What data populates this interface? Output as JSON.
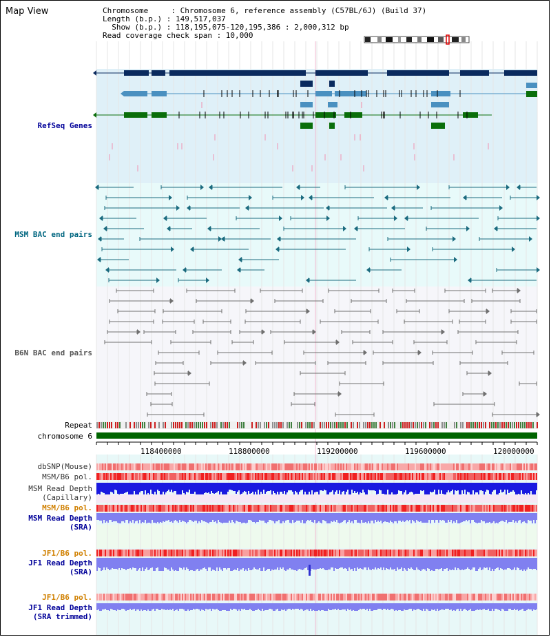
{
  "view": {
    "title": "Map View",
    "info_lines": [
      "Chromosome     : Chromosome 6, reference assembly (C57BL/6J) (Build 37)",
      "Length (b.p.) : 149,517,037",
      "  Show (b.p.) : 118,195,075-120,195,386 : 2,000,312 bp",
      "Read coverage check span : 10,000"
    ]
  },
  "tracks": {
    "refseq_label": "RefSeq Genes",
    "msm_bac_label": "MSM BAC end pairs",
    "b6n_bac_label": "B6N BAC end pairs",
    "repeat_label": "Repeat",
    "chromosome_label": "chromosome 6",
    "dbsnp_label": "dbSNP(Mouse)",
    "msm_b6_pol_label_1": "MSM/B6 pol.",
    "msm_read_depth_cap_label_1": "MSM Read Depth",
    "msm_read_depth_cap_label_2": "(Capillary)",
    "msm_b6_pol_label_2": "MSM/B6 pol.",
    "msm_read_depth_sra_label_1": "MSM Read Depth",
    "msm_read_depth_sra_label_2": "(SRA)",
    "jf1_b6_pol_label_1": "JF1/B6 pol.",
    "jf1_read_depth_sra_label_1": "JF1 Read Depth",
    "jf1_read_depth_sra_label_2": "(SRA)",
    "jf1_b6_pol_label_2": "JF1/B6 pol.",
    "jf1_read_depth_trim_label_1": "JF1 Read Depth",
    "jf1_read_depth_trim_label_2": "(SRA trimmed)"
  },
  "axis": {
    "ticks": [
      "118400000",
      "118800000",
      "119200000",
      "119600000",
      "120000000"
    ]
  },
  "colors": {
    "refseq_bg": "#dff0f8",
    "msm_bg": "#e8fafa",
    "b6n_bg": "#f6f6fa",
    "dark_navy": "#0a2a5e",
    "steel_blue": "#4a90c0",
    "green": "#0a6e0a",
    "teal": "#1a6a7e",
    "gray": "#707070",
    "label_blue": "#000099",
    "label_teal": "#006680",
    "label_orange": "#d08000",
    "chromosome_green": "#006400",
    "depth_blue": "#1a1ae0",
    "depth_lavender": "#8080f0"
  }
}
